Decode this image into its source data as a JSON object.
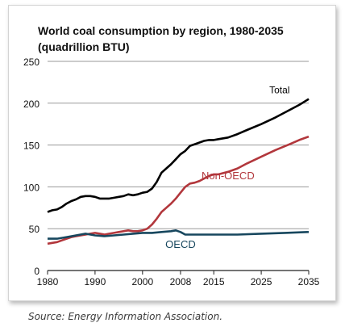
{
  "chart_data": {
    "type": "line",
    "title": "World coal consumption by region, 1980-2035",
    "subtitle": "(quadrillion BTU)",
    "ylim": [
      0,
      250
    ],
    "yticks": [
      0,
      50,
      100,
      150,
      200,
      250
    ],
    "xticks": [
      1980,
      1990,
      2000,
      2008,
      2015,
      2025,
      2035
    ],
    "grid": "horizontal",
    "series": [
      {
        "name": "Total",
        "color": "#000000",
        "points": [
          [
            1980,
            70
          ],
          [
            1981,
            72
          ],
          [
            1982,
            73
          ],
          [
            1983,
            76
          ],
          [
            1984,
            80
          ],
          [
            1985,
            83
          ],
          [
            1986,
            85
          ],
          [
            1987,
            88
          ],
          [
            1988,
            89
          ],
          [
            1989,
            89
          ],
          [
            1990,
            88
          ],
          [
            1991,
            86
          ],
          [
            1992,
            86
          ],
          [
            1993,
            86
          ],
          [
            1994,
            87
          ],
          [
            1995,
            88
          ],
          [
            1996,
            89
          ],
          [
            1997,
            91
          ],
          [
            1998,
            90
          ],
          [
            1999,
            91
          ],
          [
            2000,
            93
          ],
          [
            2001,
            94
          ],
          [
            2002,
            98
          ],
          [
            2003,
            106
          ],
          [
            2004,
            117
          ],
          [
            2005,
            122
          ],
          [
            2006,
            127
          ],
          [
            2007,
            133
          ],
          [
            2008,
            139
          ],
          [
            2009,
            143
          ],
          [
            2010,
            149
          ],
          [
            2011,
            151
          ],
          [
            2012,
            153
          ],
          [
            2013,
            155
          ],
          [
            2014,
            156
          ],
          [
            2015,
            156
          ],
          [
            2016,
            157
          ],
          [
            2018,
            159
          ],
          [
            2020,
            163
          ],
          [
            2022,
            168
          ],
          [
            2025,
            175
          ],
          [
            2028,
            183
          ],
          [
            2031,
            192
          ],
          [
            2033,
            198
          ],
          [
            2035,
            205
          ]
        ]
      },
      {
        "name": "Non-OECD",
        "color": "#b2373c",
        "points": [
          [
            1980,
            32
          ],
          [
            1981,
            33
          ],
          [
            1982,
            34
          ],
          [
            1983,
            36
          ],
          [
            1984,
            38
          ],
          [
            1985,
            40
          ],
          [
            1986,
            41
          ],
          [
            1987,
            42
          ],
          [
            1988,
            43
          ],
          [
            1989,
            44
          ],
          [
            1990,
            45
          ],
          [
            1991,
            44
          ],
          [
            1992,
            43
          ],
          [
            1993,
            44
          ],
          [
            1994,
            45
          ],
          [
            1995,
            46
          ],
          [
            1996,
            47
          ],
          [
            1997,
            48
          ],
          [
            1998,
            47
          ],
          [
            1999,
            47
          ],
          [
            2000,
            48
          ],
          [
            2001,
            50
          ],
          [
            2002,
            55
          ],
          [
            2003,
            62
          ],
          [
            2004,
            70
          ],
          [
            2005,
            75
          ],
          [
            2006,
            80
          ],
          [
            2007,
            86
          ],
          [
            2008,
            93
          ],
          [
            2009,
            100
          ],
          [
            2010,
            104
          ],
          [
            2011,
            105
          ],
          [
            2012,
            107
          ],
          [
            2013,
            110
          ],
          [
            2014,
            113
          ],
          [
            2015,
            115
          ],
          [
            2016,
            115
          ],
          [
            2018,
            118
          ],
          [
            2020,
            122
          ],
          [
            2022,
            128
          ],
          [
            2025,
            136
          ],
          [
            2028,
            144
          ],
          [
            2031,
            151
          ],
          [
            2033,
            156
          ],
          [
            2035,
            160
          ]
        ]
      },
      {
        "name": "OECD",
        "color": "#17475e",
        "points": [
          [
            1980,
            38
          ],
          [
            1982,
            38
          ],
          [
            1984,
            40
          ],
          [
            1986,
            42
          ],
          [
            1988,
            44
          ],
          [
            1990,
            42
          ],
          [
            1992,
            41
          ],
          [
            1994,
            42
          ],
          [
            1996,
            43
          ],
          [
            1998,
            44
          ],
          [
            2000,
            45
          ],
          [
            2002,
            45
          ],
          [
            2004,
            46
          ],
          [
            2006,
            47
          ],
          [
            2007,
            48
          ],
          [
            2008,
            46
          ],
          [
            2009,
            43
          ],
          [
            2011,
            43
          ],
          [
            2013,
            43
          ],
          [
            2015,
            43
          ],
          [
            2017,
            43
          ],
          [
            2020,
            43
          ],
          [
            2025,
            44
          ],
          [
            2030,
            45
          ],
          [
            2035,
            46
          ]
        ]
      }
    ],
    "annotations": [
      "Total",
      "Non-OECD",
      "OECD"
    ]
  },
  "source": "Source: Energy Information Association."
}
